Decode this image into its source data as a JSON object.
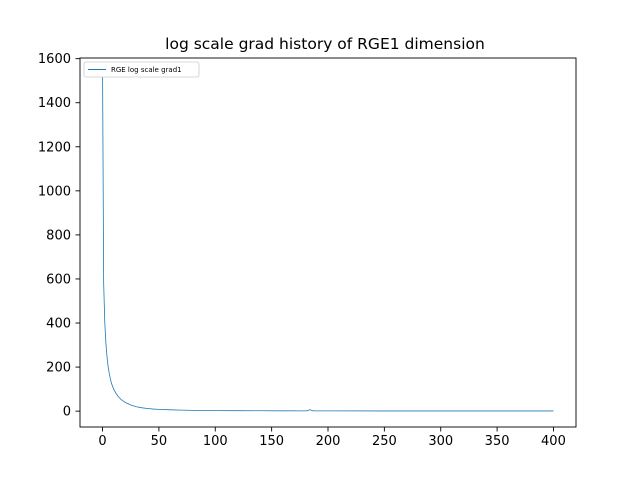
{
  "chart_data": {
    "type": "line",
    "title": "log scale grad history of RGE1 dimension",
    "xlabel": "",
    "ylabel": "",
    "xlim": [
      -20,
      420
    ],
    "ylim": [
      -72,
      1603
    ],
    "xticks": [
      0,
      50,
      100,
      150,
      200,
      250,
      300,
      350,
      400
    ],
    "yticks": [
      0,
      200,
      400,
      600,
      800,
      1000,
      1200,
      1400,
      1600
    ],
    "grid": false,
    "legend": "top-left",
    "series": [
      {
        "name": "RGE log scale grad1",
        "color": "#1f77b4",
        "x": [
          0,
          1,
          2,
          3,
          4,
          5,
          6,
          7,
          8,
          10,
          12,
          14,
          16,
          18,
          20,
          25,
          30,
          35,
          40,
          45,
          50,
          60,
          70,
          80,
          90,
          100,
          120,
          140,
          160,
          180,
          182,
          184,
          186,
          188,
          200,
          250,
          300,
          350,
          400
        ],
        "y": [
          1560,
          580,
          400,
          305,
          245,
          200,
          170,
          145,
          125,
          98,
          80,
          66,
          55,
          47,
          40,
          28,
          20,
          15,
          12,
          9.5,
          8,
          6,
          4.5,
          3.5,
          3,
          2.5,
          2,
          1.8,
          1.5,
          1.3,
          2,
          7,
          2,
          1.3,
          1.2,
          1,
          1,
          0.9,
          0.8
        ]
      }
    ]
  }
}
